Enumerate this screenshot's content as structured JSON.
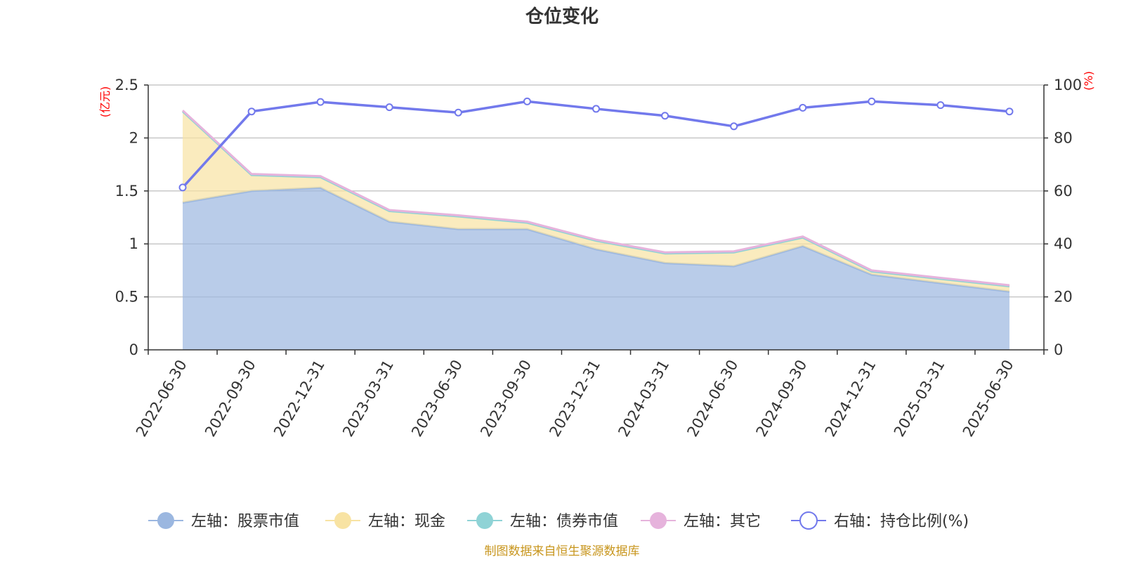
{
  "chart_data": {
    "type": "area",
    "title": "仓位变化",
    "categories": [
      "2022-06-30",
      "2022-09-30",
      "2022-12-31",
      "2023-03-31",
      "2023-06-30",
      "2023-09-30",
      "2023-12-31",
      "2024-03-31",
      "2024-06-30",
      "2024-09-30",
      "2024-12-31",
      "2025-03-31",
      "2025-06-30"
    ],
    "left_axis": {
      "unit": "(亿元)",
      "ylim": [
        0,
        2.5
      ],
      "ticks": [
        "0",
        "0.5",
        "1",
        "1.5",
        "2",
        "2.5"
      ]
    },
    "right_axis": {
      "unit": "(%)",
      "ylim": [
        0,
        100
      ],
      "ticks": [
        "0",
        "20",
        "40",
        "60",
        "80",
        "100"
      ]
    },
    "grid": true,
    "legend_position": "bottom",
    "series": [
      {
        "name": "左轴：股票市值",
        "axis": "left",
        "type": "area",
        "stacked": true,
        "color": "#9bb7e0",
        "values": [
          1.39,
          1.5,
          1.53,
          1.21,
          1.14,
          1.14,
          0.95,
          0.82,
          0.79,
          0.98,
          0.71,
          0.63,
          0.55
        ]
      },
      {
        "name": "左轴：现金",
        "axis": "left",
        "type": "area",
        "stacked": true,
        "color": "#f8e3a3",
        "values": [
          0.86,
          0.15,
          0.1,
          0.1,
          0.12,
          0.06,
          0.08,
          0.09,
          0.13,
          0.08,
          0.03,
          0.04,
          0.05
        ]
      },
      {
        "name": "左轴：债券市值",
        "axis": "left",
        "type": "area",
        "stacked": true,
        "color": "#8fd3d6",
        "values": [
          0,
          0,
          0,
          0,
          0,
          0,
          0,
          0,
          0,
          0,
          0,
          0,
          0
        ]
      },
      {
        "name": "左轴：其它",
        "axis": "left",
        "type": "area",
        "stacked": true,
        "color": "#e6b3dc",
        "values": [
          0.01,
          0.01,
          0.01,
          0.01,
          0.01,
          0.01,
          0.01,
          0.01,
          0.01,
          0.01,
          0.01,
          0.01,
          0.01
        ]
      },
      {
        "name": "右轴：持仓比例(%)",
        "axis": "right",
        "type": "line",
        "color": "#7279ec",
        "values": [
          61.3,
          90.0,
          93.6,
          91.6,
          89.6,
          93.8,
          91.0,
          88.4,
          84.4,
          91.4,
          93.8,
          92.4,
          90.0
        ]
      }
    ],
    "source_note": "制图数据来自恒生聚源数据库"
  }
}
